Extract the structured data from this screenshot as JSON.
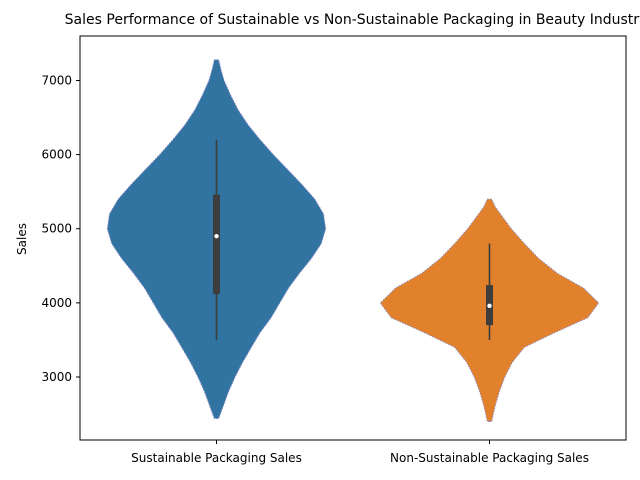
{
  "chart_data": {
    "type": "violin",
    "title": "Sales Performance of Sustainable vs Non-Sustainable Packaging in Beauty Industry",
    "xlabel": "",
    "ylabel": "Sales",
    "ylim": [
      2150,
      7600
    ],
    "yticks": [
      3000,
      4000,
      5000,
      6000,
      7000
    ],
    "categories": [
      "Sustainable Packaging Sales",
      "Non-Sustainable Packaging Sales"
    ],
    "series": [
      {
        "category": "Sustainable Packaging Sales",
        "color": "#3274a1",
        "density_range": [
          2440,
          7280
        ],
        "min": 3500,
        "q1": 4120,
        "median": 4900,
        "q3": 5460,
        "max": 6200,
        "density": [
          {
            "y": 2440,
            "w": 0.02
          },
          {
            "y": 2600,
            "w": 0.06
          },
          {
            "y": 2800,
            "w": 0.11
          },
          {
            "y": 3000,
            "w": 0.17
          },
          {
            "y": 3200,
            "w": 0.24
          },
          {
            "y": 3400,
            "w": 0.32
          },
          {
            "y": 3600,
            "w": 0.4
          },
          {
            "y": 3800,
            "w": 0.5
          },
          {
            "y": 4000,
            "w": 0.58
          },
          {
            "y": 4200,
            "w": 0.66
          },
          {
            "y": 4400,
            "w": 0.76
          },
          {
            "y": 4600,
            "w": 0.87
          },
          {
            "y": 4800,
            "w": 0.96
          },
          {
            "y": 5000,
            "w": 1.0
          },
          {
            "y": 5200,
            "w": 0.98
          },
          {
            "y": 5400,
            "w": 0.9
          },
          {
            "y": 5600,
            "w": 0.78
          },
          {
            "y": 5800,
            "w": 0.65
          },
          {
            "y": 6000,
            "w": 0.52
          },
          {
            "y": 6200,
            "w": 0.4
          },
          {
            "y": 6400,
            "w": 0.29
          },
          {
            "y": 6600,
            "w": 0.2
          },
          {
            "y": 6800,
            "w": 0.13
          },
          {
            "y": 7000,
            "w": 0.07
          },
          {
            "y": 7150,
            "w": 0.04
          },
          {
            "y": 7280,
            "w": 0.02
          }
        ]
      },
      {
        "category": "Non-Sustainable Packaging Sales",
        "color": "#e1812c",
        "density_range": [
          2400,
          5400
        ],
        "min": 3500,
        "q1": 3700,
        "median": 3960,
        "q3": 4240,
        "max": 4800,
        "density": [
          {
            "y": 2400,
            "w": 0.02
          },
          {
            "y": 2600,
            "w": 0.05
          },
          {
            "y": 2800,
            "w": 0.09
          },
          {
            "y": 3000,
            "w": 0.14
          },
          {
            "y": 3200,
            "w": 0.21
          },
          {
            "y": 3400,
            "w": 0.32
          },
          {
            "y": 3600,
            "w": 0.6
          },
          {
            "y": 3800,
            "w": 0.9
          },
          {
            "y": 4000,
            "w": 1.0
          },
          {
            "y": 4200,
            "w": 0.86
          },
          {
            "y": 4400,
            "w": 0.62
          },
          {
            "y": 4600,
            "w": 0.45
          },
          {
            "y": 4800,
            "w": 0.32
          },
          {
            "y": 5000,
            "w": 0.2
          },
          {
            "y": 5200,
            "w": 0.1
          },
          {
            "y": 5300,
            "w": 0.05
          },
          {
            "y": 5400,
            "w": 0.02
          }
        ]
      }
    ],
    "grid": false,
    "legend": "none"
  }
}
